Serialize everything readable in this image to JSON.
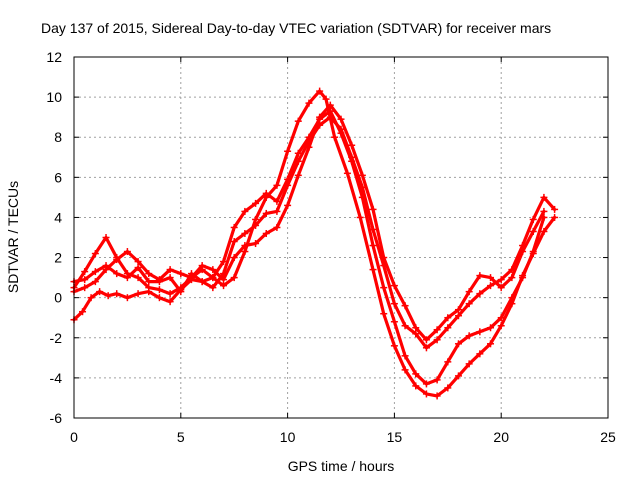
{
  "chart_data": {
    "type": "scatter",
    "title": "Day 137 of 2015, Sidereal Day-to-day VTEC variation (SDTVAR) for receiver mars",
    "xlabel": "GPS time / hours",
    "ylabel": "SDTVAR / TECUs",
    "xlim": [
      0,
      25
    ],
    "ylim": [
      -6,
      12
    ],
    "xticks": [
      0,
      5,
      10,
      15,
      20,
      25
    ],
    "yticks": [
      -6,
      -4,
      -2,
      0,
      2,
      4,
      6,
      8,
      10,
      12
    ],
    "grid": true,
    "marker": "+",
    "color": "#ff0000",
    "series": [
      {
        "x": [
          0.0,
          0.4,
          0.8,
          1.2,
          1.6,
          2.0,
          2.5,
          3.0,
          3.5,
          4.0,
          4.5,
          5.0,
          5.5,
          6.0,
          6.5,
          7.0,
          7.5,
          8.0,
          8.5,
          9.0,
          9.5,
          10.0,
          10.5,
          11.0,
          11.5,
          11.8,
          12.2,
          12.8,
          13.4,
          14.0,
          14.5,
          15.0,
          15.5,
          16.0,
          16.5,
          17.0,
          17.5,
          18.0,
          18.5,
          19.0,
          19.5,
          20.0,
          20.5,
          21.0,
          21.5,
          22.0,
          22.5
        ],
        "y": [
          -1.1,
          -0.7,
          0.0,
          0.3,
          0.1,
          0.2,
          0.0,
          0.2,
          0.3,
          0.0,
          -0.2,
          0.4,
          0.9,
          0.8,
          1.0,
          0.6,
          1.0,
          2.3,
          3.9,
          5.0,
          5.6,
          7.3,
          8.8,
          9.7,
          10.3,
          9.9,
          8.0,
          6.2,
          4.0,
          1.4,
          -0.8,
          -2.4,
          -3.6,
          -4.4,
          -4.8,
          -4.9,
          -4.5,
          -3.9,
          -3.3,
          -2.8,
          -2.3,
          -1.4,
          -0.3,
          1.1,
          2.2,
          3.3,
          4.0
        ]
      },
      {
        "x": [
          0.0,
          0.5,
          1.0,
          1.5,
          2.0,
          2.5,
          3.0,
          3.5,
          4.0,
          4.5,
          5.0,
          5.5,
          6.0,
          6.5,
          7.0,
          7.5,
          8.0,
          8.5,
          9.0,
          9.5,
          10.0,
          10.5,
          11.0,
          11.5,
          12.0,
          12.5,
          13.0,
          13.5,
          14.0,
          14.5,
          15.0,
          15.5,
          16.0,
          16.5,
          17.0,
          17.5,
          18.0,
          18.5,
          19.0,
          19.5,
          20.0,
          20.5,
          21.0,
          21.5,
          22.0
        ],
        "y": [
          0.5,
          1.3,
          2.2,
          3.0,
          2.0,
          1.2,
          1.0,
          0.5,
          0.4,
          0.2,
          0.5,
          1.0,
          1.4,
          1.0,
          1.8,
          3.5,
          4.3,
          4.7,
          5.2,
          4.8,
          5.9,
          7.2,
          8.0,
          8.9,
          9.3,
          8.2,
          6.8,
          5.0,
          2.6,
          0.5,
          -1.2,
          -2.9,
          -3.8,
          -4.3,
          -4.1,
          -3.2,
          -2.3,
          -1.9,
          -1.7,
          -1.5,
          -1.0,
          0.0,
          1.0,
          2.3,
          4.0
        ]
      },
      {
        "x": [
          0.0,
          0.5,
          1.0,
          1.5,
          2.0,
          2.5,
          3.0,
          3.5,
          4.0,
          4.5,
          5.0,
          5.5,
          6.0,
          6.5,
          7.0,
          7.5,
          8.0,
          8.5,
          9.0,
          9.5,
          10.0,
          10.5,
          11.0,
          11.5,
          12.0,
          12.5,
          13.0,
          13.5,
          14.0,
          14.5,
          15.0,
          15.5,
          16.0,
          16.5,
          17.0,
          17.5,
          18.0,
          18.5,
          19.0,
          19.5,
          20.0,
          20.5,
          21.0,
          21.5,
          22.0,
          22.5
        ],
        "y": [
          0.8,
          0.9,
          1.3,
          1.6,
          1.2,
          1.0,
          1.5,
          0.8,
          0.8,
          1.0,
          0.3,
          1.2,
          0.8,
          0.5,
          1.2,
          2.8,
          3.2,
          3.6,
          4.2,
          4.3,
          5.6,
          6.8,
          7.8,
          8.6,
          9.0,
          8.4,
          7.0,
          5.5,
          3.4,
          1.6,
          -0.3,
          -1.4,
          -1.8,
          -2.5,
          -2.1,
          -1.5,
          -0.9,
          -0.3,
          0.2,
          0.6,
          0.9,
          1.4,
          2.6,
          3.9,
          5.0,
          4.4
        ]
      },
      {
        "x": [
          0.0,
          0.5,
          1.0,
          1.5,
          2.0,
          2.5,
          3.0,
          3.5,
          4.0,
          4.5,
          5.0,
          5.5,
          6.0,
          6.5,
          7.0,
          7.5,
          8.0,
          8.5,
          9.0,
          9.5,
          10.0,
          10.5,
          11.0,
          11.5,
          12.0,
          12.5,
          13.0,
          13.5,
          14.0,
          14.5,
          15.0,
          15.5,
          16.0,
          16.5,
          17.0,
          17.5,
          18.0,
          18.5,
          19.0,
          19.5,
          20.0,
          20.5,
          21.0,
          21.5,
          22.0
        ],
        "y": [
          0.3,
          0.5,
          0.8,
          1.4,
          1.9,
          2.3,
          1.8,
          1.2,
          0.9,
          1.4,
          1.2,
          1.0,
          1.6,
          1.4,
          0.9,
          2.0,
          2.6,
          2.7,
          3.2,
          3.5,
          4.6,
          6.1,
          7.5,
          9.0,
          9.6,
          8.9,
          7.6,
          6.1,
          4.4,
          2.0,
          0.6,
          -0.4,
          -1.5,
          -2.1,
          -1.6,
          -1.0,
          -0.6,
          0.3,
          1.1,
          1.0,
          0.5,
          1.0,
          2.3,
          3.3,
          4.3
        ]
      }
    ]
  }
}
